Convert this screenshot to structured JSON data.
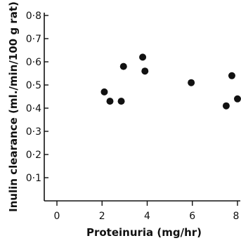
{
  "chart_data": {
    "type": "scatter",
    "title": "",
    "xlabel": "Proteinuria (mg/hr)",
    "ylabel": "Inulin clearance (ml./min/100 g rat)",
    "xlim": [
      0,
      8
    ],
    "ylim": [
      0,
      0.8
    ],
    "x_ticks": [
      0,
      2,
      4,
      6,
      8
    ],
    "x_tick_labels": [
      "0",
      "2",
      "4",
      "6",
      "8"
    ],
    "y_ticks": [
      0.1,
      0.2,
      0.3,
      0.4,
      0.5,
      0.6,
      0.7,
      0.8
    ],
    "y_tick_labels": [
      "0·1",
      "0·2",
      "0·3",
      "0·4",
      "0·5",
      "0·6",
      "0·7",
      "0·8"
    ],
    "grid": false,
    "marker_color": "#111111",
    "points": [
      {
        "x": 2.1,
        "y": 0.47
      },
      {
        "x": 2.35,
        "y": 0.43
      },
      {
        "x": 2.85,
        "y": 0.43
      },
      {
        "x": 2.95,
        "y": 0.58
      },
      {
        "x": 3.8,
        "y": 0.62
      },
      {
        "x": 3.9,
        "y": 0.56
      },
      {
        "x": 5.95,
        "y": 0.51
      },
      {
        "x": 7.5,
        "y": 0.41
      },
      {
        "x": 7.75,
        "y": 0.54
      },
      {
        "x": 8.0,
        "y": 0.44
      }
    ]
  }
}
